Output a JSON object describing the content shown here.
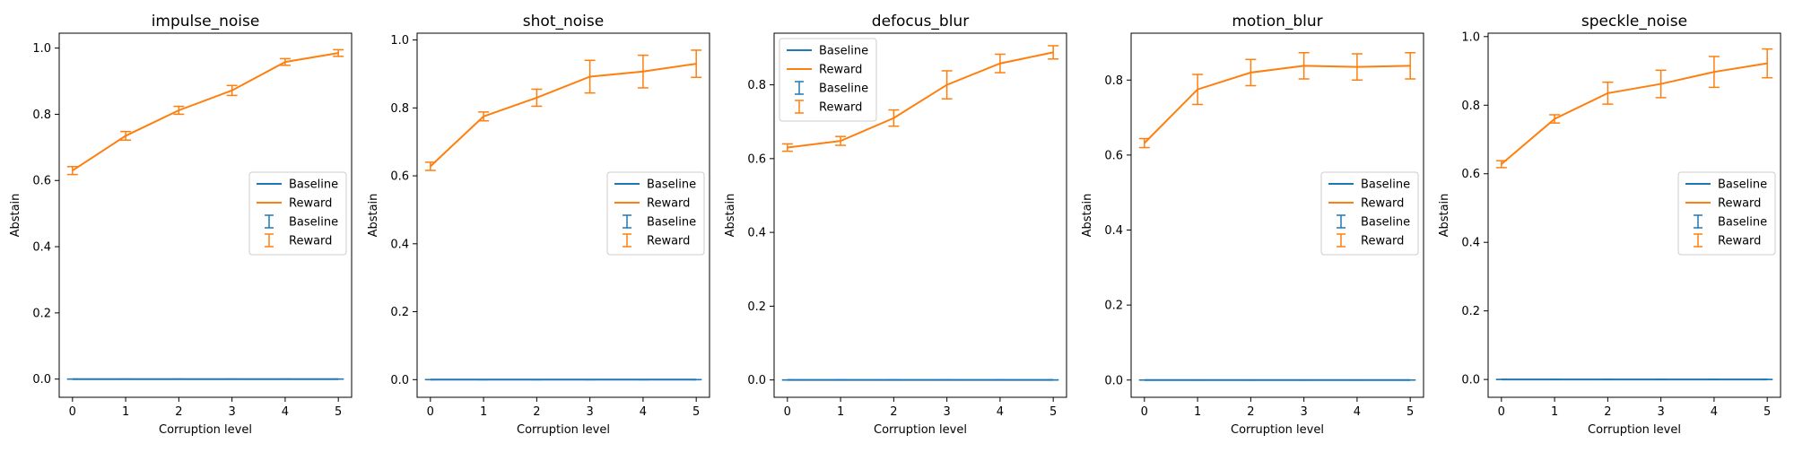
{
  "colors": {
    "baseline": "#1f77b4",
    "reward": "#ff7f0e"
  },
  "chart_data": [
    {
      "type": "line",
      "title": "impulse_noise",
      "xlabel": "Corruption level",
      "ylabel": "Abstain",
      "x": [
        0,
        1,
        2,
        3,
        4,
        5
      ],
      "xticks": [
        "0",
        "1",
        "2",
        "3",
        "4",
        "5"
      ],
      "ylim": [
        -0.055,
        1.045
      ],
      "yticks": [
        "0.0",
        "0.2",
        "0.4",
        "0.6",
        "0.8",
        "1.0"
      ],
      "legend_position": "center-right",
      "legend": [
        "Baseline",
        "Reward",
        "Baseline",
        "Reward"
      ],
      "series": [
        {
          "name": "Baseline",
          "values": [
            0,
            0,
            0,
            0,
            0,
            0
          ],
          "err": [
            0,
            0,
            0,
            0,
            0,
            0
          ]
        },
        {
          "name": "Reward",
          "values": [
            0.63,
            0.735,
            0.812,
            0.872,
            0.958,
            0.985
          ],
          "err": [
            0.012,
            0.013,
            0.012,
            0.015,
            0.01,
            0.01
          ]
        }
      ]
    },
    {
      "type": "line",
      "title": "shot_noise",
      "xlabel": "Corruption level",
      "ylabel": "Abstain",
      "x": [
        0,
        1,
        2,
        3,
        4,
        5
      ],
      "xticks": [
        "0",
        "1",
        "2",
        "3",
        "4",
        "5"
      ],
      "ylim": [
        -0.052,
        1.02
      ],
      "yticks": [
        "0.0",
        "0.2",
        "0.4",
        "0.6",
        "0.8",
        "1.0"
      ],
      "legend_position": "center-right",
      "legend": [
        "Baseline",
        "Reward",
        "Baseline",
        "Reward"
      ],
      "series": [
        {
          "name": "Baseline",
          "values": [
            0,
            0,
            0,
            0,
            0,
            0
          ],
          "err": [
            0,
            0,
            0,
            0,
            0,
            0
          ]
        },
        {
          "name": "Reward",
          "values": [
            0.628,
            0.775,
            0.83,
            0.892,
            0.907,
            0.93
          ],
          "err": [
            0.012,
            0.013,
            0.025,
            0.048,
            0.048,
            0.04
          ]
        }
      ]
    },
    {
      "type": "line",
      "title": "defocus_blur",
      "xlabel": "Corruption level",
      "ylabel": "Abstain",
      "x": [
        0,
        1,
        2,
        3,
        4,
        5
      ],
      "xticks": [
        "0",
        "1",
        "2",
        "3",
        "4",
        "5"
      ],
      "ylim": [
        -0.047,
        0.94
      ],
      "yticks": [
        "0.0",
        "0.2",
        "0.4",
        "0.6",
        "0.8"
      ],
      "legend_position": "upper-left",
      "legend": [
        "Baseline",
        "Reward",
        "Baseline",
        "Reward"
      ],
      "series": [
        {
          "name": "Baseline",
          "values": [
            0,
            0,
            0,
            0,
            0,
            0
          ],
          "err": [
            0,
            0,
            0,
            0,
            0,
            0
          ]
        },
        {
          "name": "Reward",
          "values": [
            0.63,
            0.648,
            0.71,
            0.8,
            0.858,
            0.888
          ],
          "err": [
            0.01,
            0.012,
            0.022,
            0.038,
            0.025,
            0.018
          ]
        }
      ]
    },
    {
      "type": "line",
      "title": "motion_blur",
      "xlabel": "Corruption level",
      "ylabel": "Abstain",
      "x": [
        0,
        1,
        2,
        3,
        4,
        5
      ],
      "xticks": [
        "0",
        "1",
        "2",
        "3",
        "4",
        "5"
      ],
      "ylim": [
        -0.046,
        0.925
      ],
      "yticks": [
        "0.0",
        "0.2",
        "0.4",
        "0.6",
        "0.8"
      ],
      "legend_position": "center-right",
      "legend": [
        "Baseline",
        "Reward",
        "Baseline",
        "Reward"
      ],
      "series": [
        {
          "name": "Baseline",
          "values": [
            0,
            0,
            0,
            0,
            0,
            0
          ],
          "err": [
            0,
            0,
            0,
            0,
            0,
            0
          ]
        },
        {
          "name": "Reward",
          "values": [
            0.632,
            0.775,
            0.82,
            0.838,
            0.835,
            0.838
          ],
          "err": [
            0.012,
            0.04,
            0.035,
            0.035,
            0.035,
            0.035
          ]
        }
      ]
    },
    {
      "type": "line",
      "title": "speckle_noise",
      "xlabel": "Corruption level",
      "ylabel": "Abstain",
      "x": [
        0,
        1,
        2,
        3,
        4,
        5
      ],
      "xticks": [
        "0",
        "1",
        "2",
        "3",
        "4",
        "5"
      ],
      "ylim": [
        -0.052,
        1.01
      ],
      "yticks": [
        "0.0",
        "0.2",
        "0.4",
        "0.6",
        "0.8",
        "1.0"
      ],
      "legend_position": "center-right",
      "legend": [
        "Baseline",
        "Reward",
        "Baseline",
        "Reward"
      ],
      "series": [
        {
          "name": "Baseline",
          "values": [
            0,
            0,
            0,
            0,
            0,
            0
          ],
          "err": [
            0,
            0,
            0,
            0,
            0,
            0
          ]
        },
        {
          "name": "Reward",
          "values": [
            0.628,
            0.76,
            0.835,
            0.862,
            0.897,
            0.922
          ],
          "err": [
            0.01,
            0.012,
            0.032,
            0.04,
            0.045,
            0.042
          ]
        }
      ]
    }
  ]
}
